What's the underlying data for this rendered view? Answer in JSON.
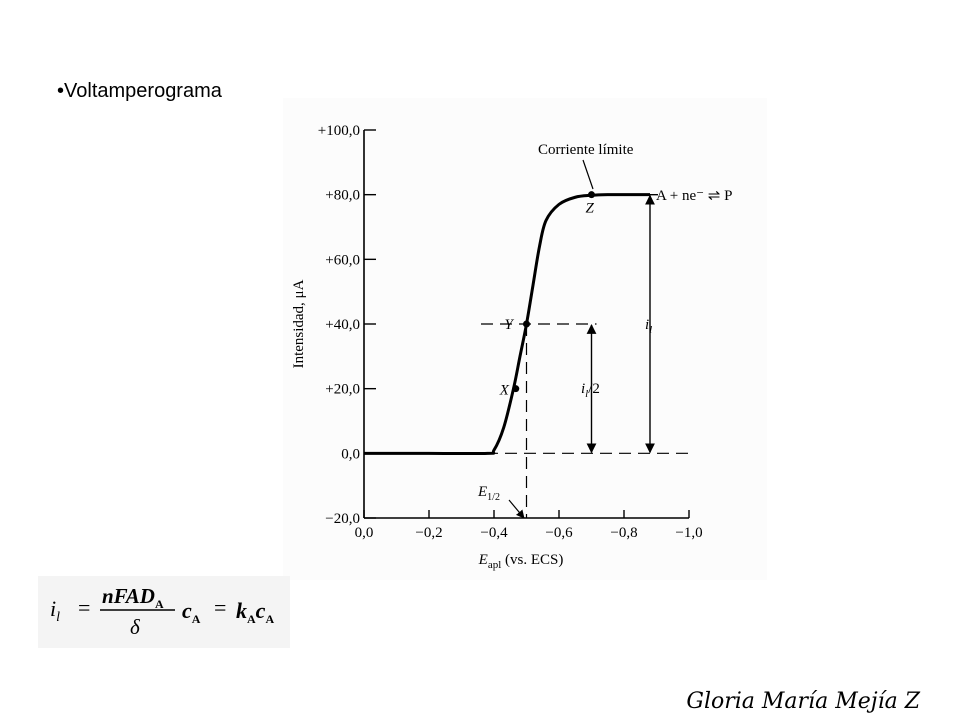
{
  "slide": {
    "bullet": "•",
    "title": "Voltamperograma",
    "signature": "Gloria María Mejía Z"
  },
  "formula": {
    "lhs_base": "i",
    "lhs_sub": "l",
    "num_main": "nFAD",
    "num_sub": "A",
    "den": "δ",
    "c1_base": "c",
    "c1_sub": "A",
    "k_base": "k",
    "k_sub": "A",
    "c2_base": "c",
    "c2_sub": "A"
  },
  "chart_data": {
    "type": "line",
    "title": "",
    "xlabel_main": "E",
    "xlabel_sub": "apl",
    "xlabel_rest": " (vs. ECS)",
    "ylabel": "Intensidad, μA",
    "xlim": [
      0.0,
      -1.0
    ],
    "ylim": [
      -20.0,
      100.0
    ],
    "xticks": [
      {
        "value": 0.0,
        "label": "0,0"
      },
      {
        "value": -0.2,
        "label": "−0,2"
      },
      {
        "value": -0.4,
        "label": "−0,4"
      },
      {
        "value": -0.6,
        "label": "−0,6"
      },
      {
        "value": -0.8,
        "label": "−0,8"
      },
      {
        "value": -1.0,
        "label": "−1,0"
      }
    ],
    "yticks": [
      {
        "value": 100.0,
        "label": "+100,0"
      },
      {
        "value": 80.0,
        "label": "+80,0"
      },
      {
        "value": 60.0,
        "label": "+60,0"
      },
      {
        "value": 40.0,
        "label": "+40,0"
      },
      {
        "value": 20.0,
        "label": "+20,0"
      },
      {
        "value": 0.0,
        "label": "0,0"
      },
      {
        "value": -20.0,
        "label": "−20,0"
      }
    ],
    "series": [
      {
        "x": [
          0.0,
          -0.2,
          -0.38,
          -0.4,
          -0.43,
          -0.46,
          -0.48,
          -0.5,
          -0.52,
          -0.54,
          -0.56,
          -0.6,
          -0.65,
          -0.7,
          -0.75,
          -0.8,
          -0.88
        ],
        "y": [
          0.0,
          0.0,
          0.0,
          1.0,
          8.0,
          20.0,
          30.0,
          40.0,
          52.0,
          64.0,
          72.0,
          77.0,
          79.2,
          79.8,
          80.0,
          80.0,
          80.0
        ]
      }
    ],
    "points": [
      {
        "label": "X",
        "x": -0.467,
        "y": 20.0
      },
      {
        "label": "Y",
        "x": -0.5,
        "y": 40.0
      },
      {
        "label": "Z",
        "x": -0.7,
        "y": 80.0
      }
    ],
    "annotations": {
      "limit_current": "Corriente límite",
      "reaction": "A + ne⁻ ⇌ P",
      "il_label_base": "i",
      "il_label_sub": "l",
      "half_label_base": "i",
      "half_label_sub": "l",
      "half_label_rest": "/2",
      "e_half_base": "E",
      "e_half_sub": "1/2"
    },
    "il_arrow_x": -0.88,
    "half_arrow_x": -0.7,
    "e_half_value": -0.5,
    "grid": false
  }
}
